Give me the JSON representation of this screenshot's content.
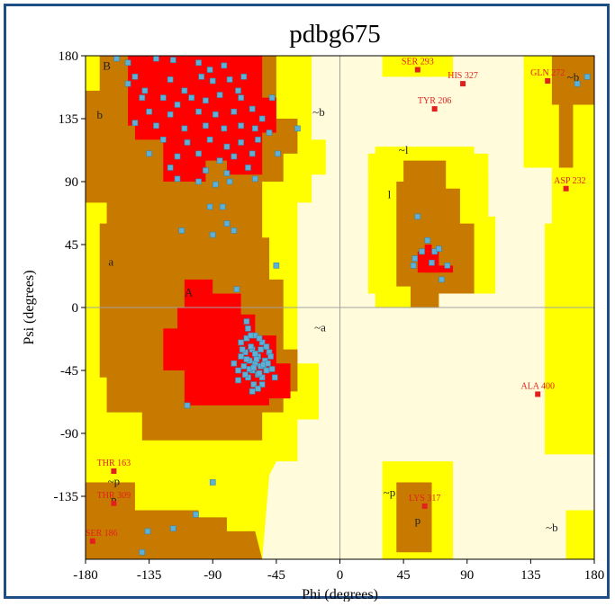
{
  "chart_data": {
    "type": "scatter",
    "title": "pdbg675",
    "xlabel": "Phi (degrees)",
    "ylabel": "Psi (degrees)",
    "xlim": [
      -180,
      180
    ],
    "ylim": [
      -180,
      180
    ],
    "xticks": [
      -180,
      -135,
      -90,
      -45,
      0,
      45,
      90,
      135,
      180
    ],
    "yticks": [
      180,
      135,
      90,
      45,
      0,
      -45,
      -90,
      -135
    ],
    "colors": {
      "core": "#ff0000",
      "allowed": "#c87a00",
      "generous": "#ffff00",
      "disallowed": "#fffbdb",
      "point": "#5fb0d6",
      "outlier": "#e32020"
    },
    "region_labels": [
      {
        "text": "B",
        "phi": -165,
        "psi": 170
      },
      {
        "text": "b",
        "phi": -170,
        "psi": 135
      },
      {
        "text": "~b",
        "phi": -15,
        "psi": 137
      },
      {
        "text": "a",
        "phi": -162,
        "psi": 30
      },
      {
        "text": "A",
        "phi": -107,
        "psi": 8
      },
      {
        "text": "~a",
        "phi": -14,
        "psi": -17
      },
      {
        "text": "~l",
        "phi": 45,
        "psi": 110
      },
      {
        "text": "l",
        "phi": 35,
        "psi": 78
      },
      {
        "text": "~p",
        "phi": -160,
        "psi": -127
      },
      {
        "text": "p",
        "phi": -160,
        "psi": -140
      },
      {
        "text": "~p",
        "phi": 35,
        "psi": -135
      },
      {
        "text": "p",
        "phi": 55,
        "psi": -155
      },
      {
        "text": "~b",
        "phi": 150,
        "psi": -160
      },
      {
        "text": "~b",
        "phi": 165,
        "psi": 162
      }
    ],
    "outliers": [
      {
        "label": "SER 293",
        "phi": 55,
        "psi": 170
      },
      {
        "label": "HIS 327",
        "phi": 87,
        "psi": 160
      },
      {
        "label": "GLN 272",
        "phi": 147,
        "psi": 162
      },
      {
        "label": "TYR 206",
        "phi": 67,
        "psi": 142
      },
      {
        "label": "ASP 232",
        "phi": 160,
        "psi": 85
      },
      {
        "label": "ALA 400",
        "phi": 140,
        "psi": -62
      },
      {
        "label": "THR 163",
        "phi": -160,
        "psi": -117
      },
      {
        "label": "THR 309",
        "phi": -160,
        "psi": -140
      },
      {
        "label": "LYS 317",
        "phi": 60,
        "psi": -142
      },
      {
        "label": "SER 186",
        "phi": -175,
        "psi": -167
      }
    ],
    "series": [
      {
        "points": [
          [
            -158,
            178
          ],
          [
            -150,
            175
          ],
          [
            -130,
            178
          ],
          [
            -118,
            177
          ],
          [
            -100,
            175
          ],
          [
            -82,
            173
          ],
          [
            -145,
            165
          ],
          [
            -120,
            163
          ],
          [
            -98,
            165
          ],
          [
            -90,
            162
          ],
          [
            -78,
            163
          ],
          [
            -110,
            155
          ],
          [
            -140,
            150
          ],
          [
            -125,
            150
          ],
          [
            -115,
            145
          ],
          [
            -105,
            150
          ],
          [
            -95,
            148
          ],
          [
            -85,
            152
          ],
          [
            -70,
            150
          ],
          [
            -135,
            140
          ],
          [
            -120,
            138
          ],
          [
            -100,
            140
          ],
          [
            -88,
            138
          ],
          [
            -75,
            140
          ],
          [
            -62,
            142
          ],
          [
            -55,
            135
          ],
          [
            -145,
            132
          ],
          [
            -130,
            130
          ],
          [
            -110,
            128
          ],
          [
            -95,
            130
          ],
          [
            -82,
            128
          ],
          [
            -70,
            130
          ],
          [
            -60,
            128
          ],
          [
            -50,
            125
          ],
          [
            -125,
            120
          ],
          [
            -108,
            118
          ],
          [
            -92,
            120
          ],
          [
            -80,
            115
          ],
          [
            -70,
            118
          ],
          [
            -58,
            120
          ],
          [
            -135,
            110
          ],
          [
            -115,
            108
          ],
          [
            -100,
            110
          ],
          [
            -85,
            105
          ],
          [
            -75,
            108
          ],
          [
            -62,
            110
          ],
          [
            -120,
            100
          ],
          [
            -95,
            98
          ],
          [
            -80,
            96
          ],
          [
            -65,
            100
          ],
          [
            -115,
            92
          ],
          [
            -100,
            90
          ],
          [
            -88,
            88
          ],
          [
            -78,
            90
          ],
          [
            -60,
            92
          ],
          [
            -150,
            160
          ],
          [
            -138,
            155
          ],
          [
            -92,
            170
          ],
          [
            -68,
            165
          ],
          [
            -72,
            155
          ],
          [
            -44,
            110
          ],
          [
            -30,
            128
          ],
          [
            -48,
            150
          ],
          [
            -75,
            55
          ],
          [
            -92,
            72
          ],
          [
            -90,
            52
          ],
          [
            -83,
            72
          ],
          [
            -80,
            60
          ],
          [
            -112,
            55
          ],
          [
            -73,
            13
          ],
          [
            -45,
            30
          ],
          [
            -65,
            -15
          ],
          [
            -60,
            -20
          ],
          [
            -70,
            -25
          ],
          [
            -55,
            -25
          ],
          [
            -62,
            -30
          ],
          [
            -67,
            -32
          ],
          [
            -58,
            -35
          ],
          [
            -50,
            -32
          ],
          [
            -64,
            -38
          ],
          [
            -60,
            -40
          ],
          [
            -56,
            -42
          ],
          [
            -68,
            -42
          ],
          [
            -52,
            -45
          ],
          [
            -62,
            -45
          ],
          [
            -58,
            -48
          ],
          [
            -65,
            -50
          ],
          [
            -55,
            -50
          ],
          [
            -70,
            -35
          ],
          [
            -63,
            -28
          ],
          [
            -57,
            -22
          ],
          [
            -66,
            -22
          ],
          [
            -61,
            -55
          ],
          [
            -53,
            -38
          ],
          [
            -72,
            -45
          ],
          [
            -60,
            -33
          ],
          [
            -56,
            -30
          ],
          [
            -64,
            -44
          ],
          [
            -59,
            -37
          ],
          [
            -61,
            -43
          ],
          [
            -54,
            -41
          ],
          [
            -66,
            -37
          ],
          [
            -69,
            -30
          ],
          [
            -51,
            -40
          ],
          [
            -57,
            -47
          ],
          [
            -48,
            -44
          ],
          [
            -75,
            -40
          ],
          [
            -67,
            -48
          ],
          [
            -55,
            -55
          ],
          [
            -58,
            -58
          ],
          [
            -62,
            -60
          ],
          [
            -52,
            -28
          ],
          [
            -49,
            -35
          ],
          [
            -63,
            -20
          ],
          [
            -66,
            -10
          ],
          [
            -72,
            -52
          ],
          [
            -46,
            -50
          ],
          [
            -108,
            -70
          ],
          [
            -90,
            -125
          ],
          [
            -102,
            -148
          ],
          [
            -118,
            -158
          ],
          [
            -140,
            -175
          ],
          [
            -136,
            -160
          ],
          [
            55,
            65
          ],
          [
            62,
            48
          ],
          [
            58,
            40
          ],
          [
            67,
            40
          ],
          [
            53,
            35
          ],
          [
            70,
            42
          ],
          [
            65,
            32
          ],
          [
            76,
            30
          ],
          [
            52,
            30
          ],
          [
            72,
            20
          ],
          [
            175,
            165
          ],
          [
            168,
            160
          ]
        ]
      }
    ]
  }
}
